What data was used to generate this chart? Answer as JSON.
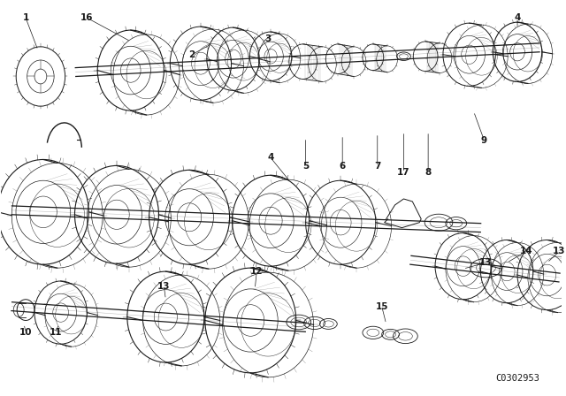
{
  "bg_color": "#ffffff",
  "line_color": "#1a1a1a",
  "diagram_code": "C0302953",
  "figsize": [
    6.4,
    4.48
  ],
  "dpi": 100,
  "labels": [
    [
      "1",
      35,
      28
    ],
    [
      "16",
      100,
      22
    ],
    [
      "2",
      218,
      68
    ],
    [
      "3",
      300,
      52
    ],
    [
      "4",
      580,
      22
    ],
    [
      "4",
      310,
      175
    ],
    [
      "5",
      350,
      185
    ],
    [
      "6",
      395,
      185
    ],
    [
      "7",
      440,
      185
    ],
    [
      "17",
      468,
      185
    ],
    [
      "8",
      498,
      185
    ],
    [
      "9",
      555,
      155
    ],
    [
      "10",
      35,
      368
    ],
    [
      "11",
      62,
      368
    ],
    [
      "12",
      295,
      308
    ],
    [
      "13",
      192,
      330
    ],
    [
      "13",
      555,
      298
    ],
    [
      "14",
      600,
      285
    ],
    [
      "13",
      638,
      285
    ],
    [
      "15",
      435,
      345
    ]
  ]
}
